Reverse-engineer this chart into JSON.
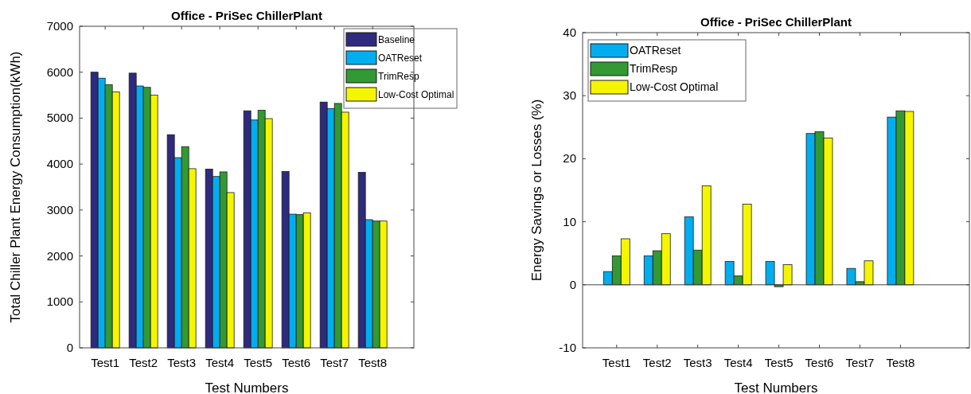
{
  "chart_data": [
    {
      "type": "bar",
      "title": "Office - PriSec ChillerPlant",
      "xlabel": "Test Numbers",
      "ylabel": "Total Chiller Plant Energy Consumption(kWh)",
      "categories": [
        "Test1",
        "Test2",
        "Test3",
        "Test4",
        "Test5",
        "Test6",
        "Test7",
        "Test8"
      ],
      "series": [
        {
          "name": "Baseline",
          "color": "#2e2a7e",
          "values": [
            6000,
            5980,
            4640,
            3890,
            5160,
            3840,
            5350,
            3820
          ]
        },
        {
          "name": "OATReset",
          "color": "#00aeef",
          "values": [
            5870,
            5700,
            4140,
            3730,
            4960,
            2910,
            5210,
            2790
          ]
        },
        {
          "name": "TrimResp",
          "color": "#339933",
          "values": [
            5730,
            5670,
            4380,
            3830,
            5170,
            2900,
            5320,
            2760
          ]
        },
        {
          "name": "Low-Cost Optimal",
          "color": "#f5f500",
          "values": [
            5570,
            5500,
            3900,
            3380,
            4990,
            2940,
            5130,
            2760
          ]
        }
      ],
      "ylim": [
        0,
        7000
      ],
      "yticks": [
        0,
        1000,
        2000,
        3000,
        4000,
        5000,
        6000,
        7000
      ],
      "legend": "top right"
    },
    {
      "type": "bar",
      "title": "Office - PriSec ChillerPlant",
      "xlabel": "Test Numbers",
      "ylabel": "Energy Savings or Losses (%)",
      "categories": [
        "Test1",
        "Test2",
        "Test3",
        "Test4",
        "Test5",
        "Test6",
        "Test7",
        "Test8"
      ],
      "series": [
        {
          "name": "OATReset",
          "color": "#00aeef",
          "values": [
            2.1,
            4.6,
            10.8,
            3.7,
            3.7,
            24.0,
            2.6,
            26.6
          ]
        },
        {
          "name": "TrimResp",
          "color": "#339933",
          "values": [
            4.6,
            5.4,
            5.5,
            1.4,
            -0.3,
            24.3,
            0.5,
            27.6
          ]
        },
        {
          "name": "Low-Cost Optimal",
          "color": "#f5f500",
          "values": [
            7.3,
            8.1,
            15.7,
            12.8,
            3.2,
            23.3,
            3.8,
            27.5
          ]
        }
      ],
      "ylim": [
        -10,
        40
      ],
      "yticks": [
        -10,
        0,
        10,
        20,
        30,
        40
      ],
      "legend": "top left"
    }
  ]
}
